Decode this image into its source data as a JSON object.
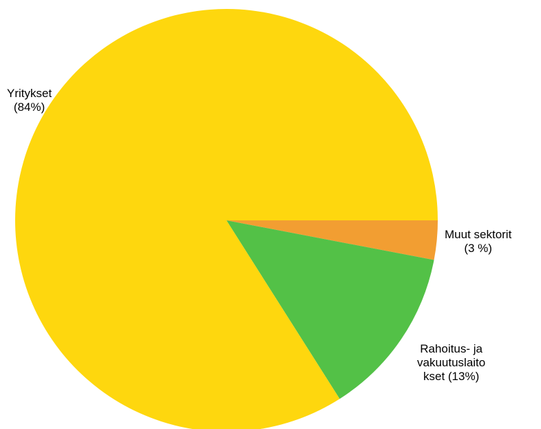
{
  "chart_data": {
    "type": "pie",
    "slices": [
      {
        "name": "Yritykset",
        "value": 84,
        "color": "#fed70e",
        "label_lines": [
          "Yritykset",
          "(84%)"
        ]
      },
      {
        "name": "Muut sektorit",
        "value": 3,
        "color": "#f29e32",
        "label_lines": [
          "Muut sektorit",
          "(3 %)"
        ]
      },
      {
        "name": "Rahoitus- ja vakuutuslaitokset",
        "value": 13,
        "color": "#53c147",
        "label_lines": [
          "Rahoitus- ja",
          "vakuutuslaito",
          "kset (13%)"
        ]
      }
    ],
    "start_direction": "east",
    "order": "clockwise-from-east: Muut sektorit, Rahoitus- ja vakuutuslaitokset, Yritykset"
  }
}
